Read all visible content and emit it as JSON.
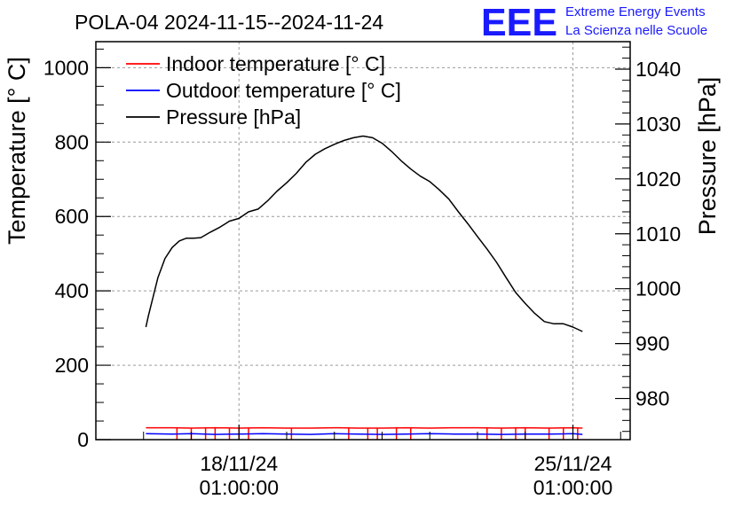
{
  "chart_data": {
    "type": "line",
    "title": "POLA-04 2024-11-15--2024-11-24",
    "xlabel": "",
    "ylabel": "Temperature [° C]",
    "y2label": "Pressure [hPa]",
    "x_ticks": [
      {
        "date": "18/11/24",
        "time": "01:00:00",
        "day": 3.0
      },
      {
        "date": "25/11/24",
        "time": "01:00:00",
        "day": 10.0
      }
    ],
    "xlim_days": [
      0.0,
      11.2
    ],
    "ylim": [
      0,
      1070
    ],
    "y_ticks": [
      "0",
      "200",
      "400",
      "600",
      "800",
      "1000"
    ],
    "y2lim": [
      972.5,
      1045
    ],
    "y2_ticks": [
      "980",
      "990",
      "1000",
      "1010",
      "1020",
      "1030",
      "1040"
    ],
    "grid": true,
    "legend_position": "top-left",
    "series": [
      {
        "name": "Indoor temperature [° C]",
        "axis": "left",
        "color": "#ff0000",
        "x_days": [
          1.05,
          1.6,
          2.0,
          2.5,
          3.0,
          3.5,
          4.0,
          4.5,
          5.0,
          5.5,
          6.0,
          6.5,
          7.0,
          7.5,
          8.0,
          8.5,
          9.0,
          9.5,
          10.0,
          10.2
        ],
        "values": [
          32,
          32,
          31,
          32,
          31,
          32,
          31,
          31,
          32,
          31,
          31,
          32,
          31,
          32,
          32,
          31,
          32,
          31,
          32,
          31
        ],
        "dropouts_x_days": [
          1.7,
          2.0,
          2.3,
          2.5,
          2.8,
          3.0,
          3.2,
          4.1,
          5.3,
          5.7,
          5.9,
          6.3,
          6.6,
          8.2,
          8.5,
          8.8,
          9.0,
          9.5,
          9.8,
          10.1
        ]
      },
      {
        "name": "Outdoor temperature [° C]",
        "axis": "left",
        "color": "#0000ff",
        "x_days": [
          1.05,
          1.6,
          2.0,
          2.5,
          3.0,
          3.5,
          4.0,
          4.5,
          5.0,
          5.5,
          6.0,
          6.5,
          7.0,
          7.5,
          8.0,
          8.5,
          9.0,
          9.5,
          10.0,
          10.2
        ],
        "values": [
          16,
          15,
          16,
          14,
          15,
          16,
          15,
          14,
          16,
          15,
          14,
          15,
          16,
          15,
          15,
          14,
          15,
          15,
          16,
          14
        ]
      },
      {
        "name": "Pressure [hPa]",
        "axis": "right",
        "color": "#000000",
        "x_days": [
          1.05,
          1.1,
          1.2,
          1.3,
          1.45,
          1.6,
          1.75,
          1.9,
          2.05,
          2.2,
          2.4,
          2.6,
          2.8,
          3.0,
          3.2,
          3.4,
          3.6,
          3.8,
          4.0,
          4.2,
          4.4,
          4.6,
          4.8,
          5.0,
          5.2,
          5.4,
          5.6,
          5.8,
          6.0,
          6.2,
          6.4,
          6.6,
          6.8,
          7.0,
          7.2,
          7.4,
          7.6,
          7.8,
          8.0,
          8.2,
          8.4,
          8.6,
          8.8,
          9.0,
          9.2,
          9.4,
          9.6,
          9.8,
          10.0,
          10.2
        ],
        "values": [
          993.0,
          995.0,
          998.5,
          1002.0,
          1005.5,
          1007.5,
          1008.7,
          1009.2,
          1009.2,
          1009.3,
          1010.3,
          1011.2,
          1012.3,
          1012.8,
          1014.0,
          1014.5,
          1016.0,
          1017.8,
          1019.3,
          1021.0,
          1023.0,
          1024.5,
          1025.5,
          1026.3,
          1027.0,
          1027.5,
          1027.8,
          1027.5,
          1026.5,
          1025.0,
          1023.3,
          1021.8,
          1020.5,
          1019.5,
          1018.0,
          1016.3,
          1014.0,
          1011.8,
          1009.5,
          1007.2,
          1004.8,
          1002.0,
          999.3,
          997.3,
          995.5,
          994.0,
          993.6,
          993.6,
          993.0,
          992.2
        ]
      }
    ]
  },
  "logo": {
    "text": "EEE",
    "line1": "Extreme Energy Events",
    "line2": "La Scienza nelle Scuole",
    "color": "#1a1aff"
  }
}
